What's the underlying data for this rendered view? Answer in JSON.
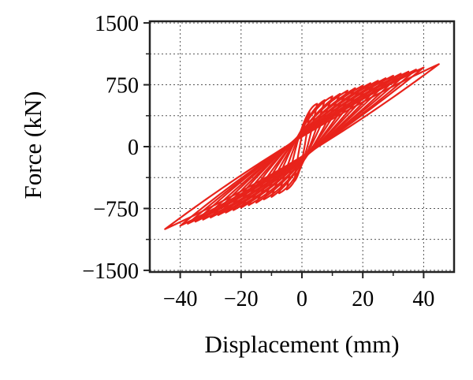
{
  "chart_data": {
    "type": "line",
    "title": "",
    "xlabel": "Displacement (mm)",
    "ylabel": "Force (kN)",
    "xlim": [
      -50,
      50
    ],
    "ylim": [
      -1520,
      1520
    ],
    "xticks": [
      -40,
      -20,
      0,
      20,
      40
    ],
    "yticks": [
      1500,
      750,
      0,
      -750,
      -1500
    ],
    "xtick_labels": [
      "−40",
      "−20",
      "0",
      "20",
      "40"
    ],
    "ytick_labels": [
      "1500",
      "750",
      "0",
      "−750",
      "−1500"
    ],
    "grid": true,
    "grid_style": "dotted",
    "legend": "none",
    "series_color": "#e8231b",
    "series": [
      {
        "loops": [
          {
            "amp": 2.5,
            "fmax": 420,
            "c": 150,
            "yoff": -0.1
          },
          {
            "amp": 5,
            "fmax": 520,
            "c": 220,
            "yoff": 0.04
          },
          {
            "amp": 7.5,
            "fmax": 565,
            "c": 210,
            "yoff": -0.03
          },
          {
            "amp": 10,
            "fmax": 610,
            "c": 200,
            "yoff": 0.06
          },
          {
            "amp": 12.5,
            "fmax": 640,
            "c": 190,
            "yoff": -0.05
          },
          {
            "amp": 15,
            "fmax": 680,
            "c": 180,
            "yoff": 0.03
          },
          {
            "amp": 17.5,
            "fmax": 710,
            "c": 170,
            "yoff": -0.04
          },
          {
            "amp": 20,
            "fmax": 740,
            "c": 165,
            "yoff": 0.05
          },
          {
            "amp": 22.5,
            "fmax": 770,
            "c": 160,
            "yoff": -0.02
          },
          {
            "amp": 25,
            "fmax": 800,
            "c": 155,
            "yoff": 0.04
          },
          {
            "amp": 27.5,
            "fmax": 830,
            "c": 150,
            "yoff": -0.03
          },
          {
            "amp": 30,
            "fmax": 860,
            "c": 145,
            "yoff": 0.02
          },
          {
            "amp": 32.5,
            "fmax": 885,
            "c": 140,
            "yoff": -0.04
          },
          {
            "amp": 35,
            "fmax": 910,
            "c": 135,
            "yoff": 0.03
          },
          {
            "amp": 37.5,
            "fmax": 935,
            "c": 130,
            "yoff": -0.02
          },
          {
            "amp": 40,
            "fmax": 960,
            "c": 125,
            "yoff": 0.02
          },
          {
            "amp": 45,
            "fmax": 1000,
            "c": 120,
            "yoff": 0.0
          }
        ]
      }
    ]
  }
}
